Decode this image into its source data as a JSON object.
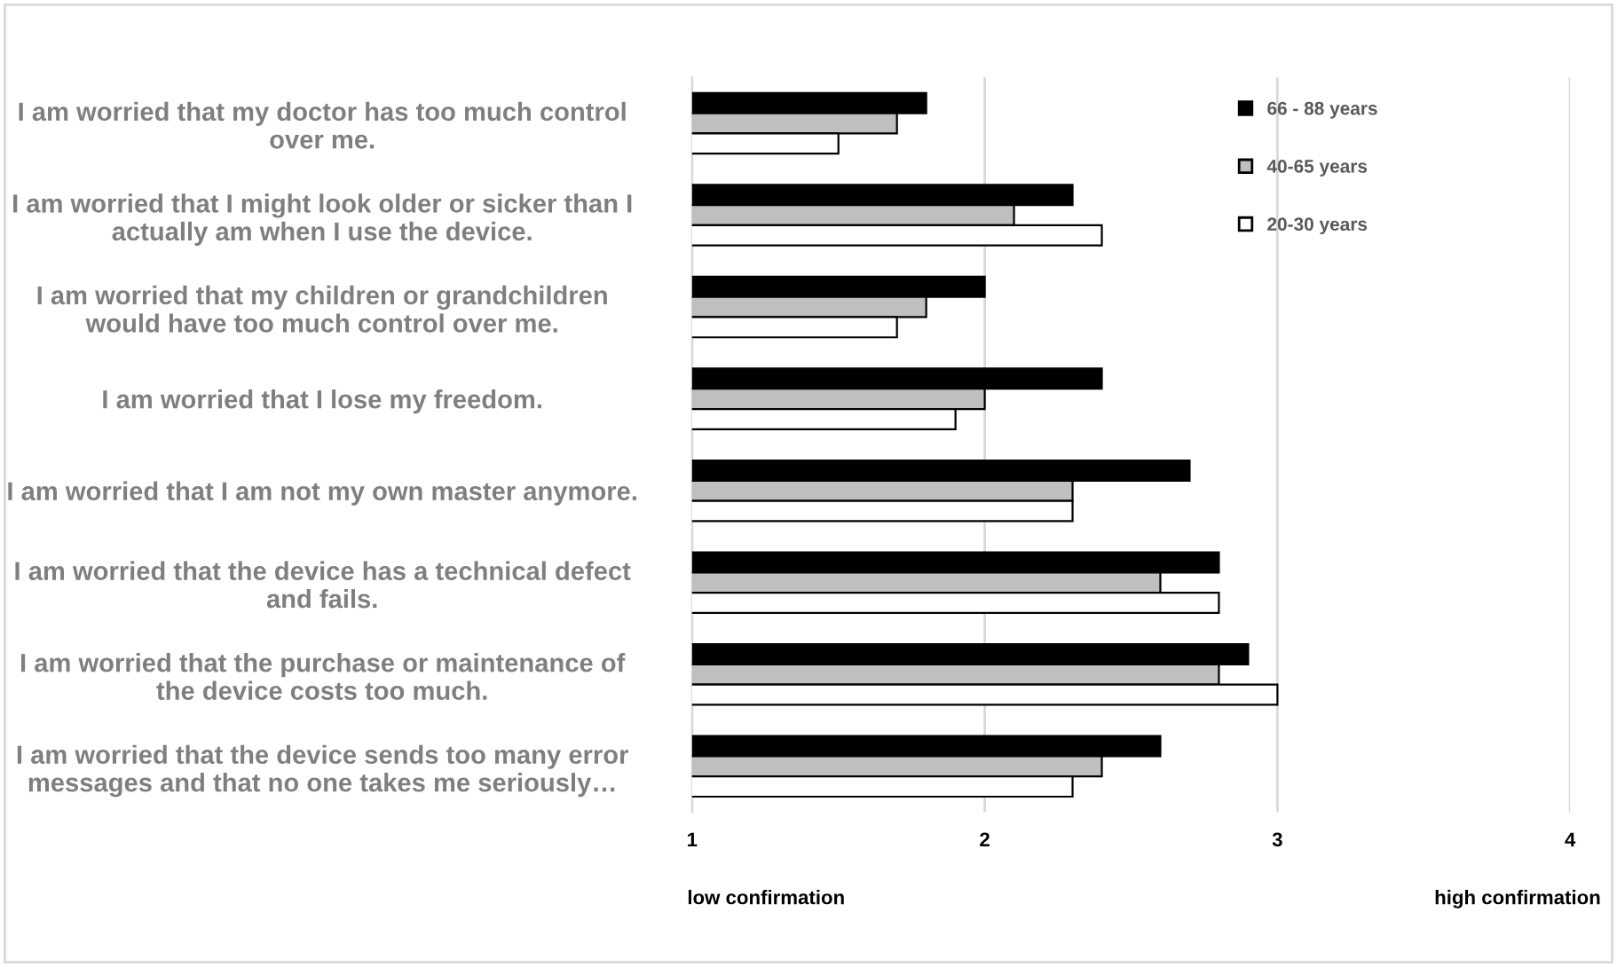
{
  "chart_data": {
    "type": "bar",
    "orientation": "horizontal",
    "categories": [
      "I am worried that my doctor has too much control\nover me.",
      "I am worried that I might look older or sicker than I\nactually am when I use the device.",
      "I am worried that my children or grandchildren\nwould have too much control over me.",
      "I am worried that I lose my freedom.",
      "I am worried that I am not my own master anymore.",
      "I am worried that the device has a technical defect\nand fails.",
      "I am worried that the purchase or maintenance of\nthe device costs too much.",
      "I am worried that the device sends too many error\nmessages and that no one takes me seriously…"
    ],
    "series": [
      {
        "name": "66 - 88 years",
        "color": "#000000",
        "values": [
          1.8,
          2.3,
          2.0,
          2.4,
          2.7,
          2.8,
          2.9,
          2.6
        ]
      },
      {
        "name": "40-65 years",
        "color": "#bfbfbf",
        "values": [
          1.7,
          2.1,
          1.8,
          2.0,
          2.3,
          2.6,
          2.8,
          2.4
        ]
      },
      {
        "name": "20-30 years",
        "color": "#ffffff",
        "values": [
          1.5,
          2.4,
          1.7,
          1.9,
          2.3,
          2.8,
          3.0,
          2.3
        ]
      }
    ],
    "xlim": [
      1,
      4
    ],
    "xticks": [
      1,
      2,
      3,
      4
    ],
    "grid": "x",
    "legend": "top right",
    "annotations": [
      "low confirmation",
      "high confirmation"
    ]
  }
}
